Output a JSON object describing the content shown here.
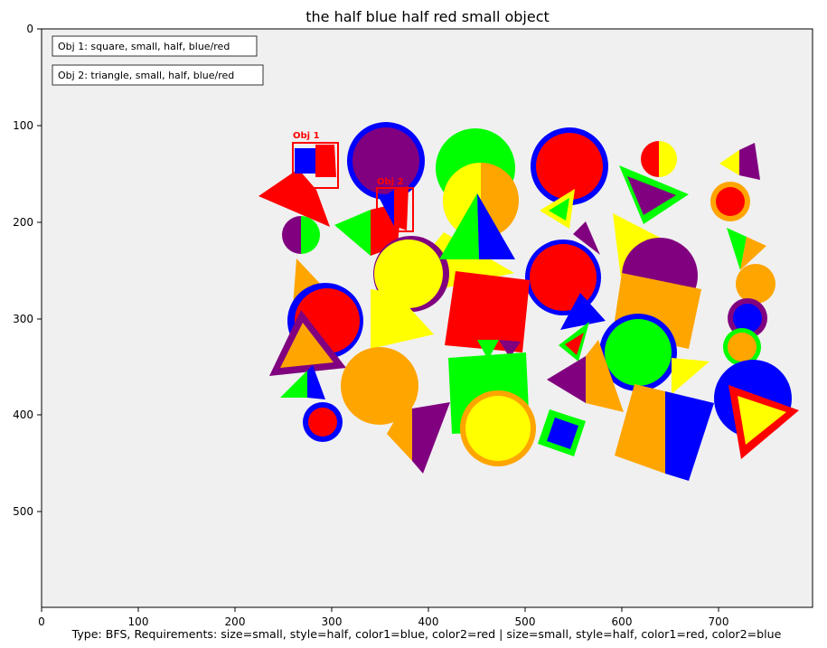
{
  "title": "the half blue half red small object",
  "caption": "Type: BFS, Requirements: size=small, style=half, color1=blue, color2=red | size=small, style=half, color1=red, color2=blue",
  "axes": {
    "x_ticks": [
      "0",
      "100",
      "200",
      "300",
      "400",
      "500",
      "600",
      "700"
    ],
    "y_ticks": [
      "0",
      "100",
      "200",
      "300",
      "400",
      "500"
    ],
    "background": "#f0f0f0"
  },
  "info_boxes": [
    "Obj 1: square, small, half, blue/red",
    "Obj 2: triangle, small, half, blue/red"
  ],
  "markers": [
    "Obj 1",
    "Obj 2"
  ],
  "colors": {
    "red": "#ff0000",
    "blue": "#0000ff",
    "green": "#00ff00",
    "yellow": "#ffff00",
    "orange": "#ffa500",
    "purple": "#800080",
    "marker": "#ff0000"
  }
}
